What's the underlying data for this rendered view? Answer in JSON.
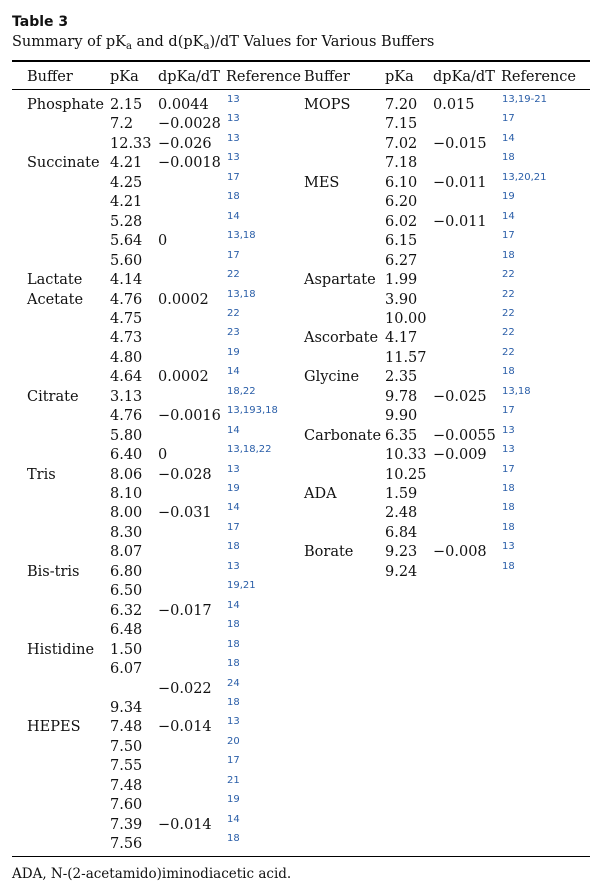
{
  "table_label": "Table 3",
  "caption": {
    "pre": "Summary of pK",
    "sub1": "a",
    "mid": " and d(pK",
    "sub2": "a",
    "post": ")/dT Values for Various Buffers"
  },
  "headers": {
    "buffer": "Buffer",
    "pka": "pKa",
    "dpka": "dpKa/dT",
    "reference": "Reference",
    "buffer2": "Buffer",
    "pka2": "pKa",
    "dpka2": "dpKa/dT",
    "reference2": "Reference"
  },
  "left_rows": [
    {
      "buffer": "Phosphate",
      "pka": "2.15",
      "dpka": "0.0044",
      "ref": "13"
    },
    {
      "buffer": "",
      "pka": "7.2",
      "dpka": "−0.0028",
      "ref": "13"
    },
    {
      "buffer": "",
      "pka": "12.33",
      "dpka": "−0.026",
      "ref": "13"
    },
    {
      "buffer": "Succinate",
      "pka": "4.21",
      "dpka": "−0.0018",
      "ref": "13"
    },
    {
      "buffer": "",
      "pka": "4.25",
      "dpka": "",
      "ref": "17"
    },
    {
      "buffer": "",
      "pka": "4.21",
      "dpka": "",
      "ref": "18"
    },
    {
      "buffer": "",
      "pka": "5.28",
      "dpka": "",
      "ref": "14"
    },
    {
      "buffer": "",
      "pka": "5.64",
      "dpka": "0",
      "ref": "13,18"
    },
    {
      "buffer": "",
      "pka": "5.60",
      "dpka": "",
      "ref": "17"
    },
    {
      "buffer": "Lactate",
      "pka": "4.14",
      "dpka": "",
      "ref": "22"
    },
    {
      "buffer": "Acetate",
      "pka": "4.76",
      "dpka": "0.0002",
      "ref": "13,18"
    },
    {
      "buffer": "",
      "pka": "4.75",
      "dpka": "",
      "ref": "22"
    },
    {
      "buffer": "",
      "pka": "4.73",
      "dpka": "",
      "ref": "23"
    },
    {
      "buffer": "",
      "pka": "4.80",
      "dpka": "",
      "ref": "19"
    },
    {
      "buffer": "",
      "pka": "4.64",
      "dpka": "0.0002",
      "ref": "14"
    },
    {
      "buffer": "Citrate",
      "pka": "3.13",
      "dpka": "",
      "ref": "18,22"
    },
    {
      "buffer": "",
      "pka": "4.76",
      "dpka": "−0.0016",
      "ref": "13,193,18"
    },
    {
      "buffer": "",
      "pka": "5.80",
      "dpka": "",
      "ref": "14"
    },
    {
      "buffer": "",
      "pka": "6.40",
      "dpka": "0",
      "ref": "13,18,22"
    },
    {
      "buffer": "Tris",
      "pka": "8.06",
      "dpka": "−0.028",
      "ref": "13"
    },
    {
      "buffer": "",
      "pka": "8.10",
      "dpka": "",
      "ref": "19"
    },
    {
      "buffer": "",
      "pka": "8.00",
      "dpka": "−0.031",
      "ref": "14"
    },
    {
      "buffer": "",
      "pka": "8.30",
      "dpka": "",
      "ref": "17"
    },
    {
      "buffer": "",
      "pka": "8.07",
      "dpka": "",
      "ref": "18"
    },
    {
      "buffer": "Bis-tris",
      "pka": "6.80",
      "dpka": "",
      "ref": "13"
    },
    {
      "buffer": "",
      "pka": "6.50",
      "dpka": "",
      "ref": "19,21"
    },
    {
      "buffer": "",
      "pka": "6.32",
      "dpka": "−0.017",
      "ref": "14"
    },
    {
      "buffer": "",
      "pka": "6.48",
      "dpka": "",
      "ref": "18"
    },
    {
      "buffer": "Histidine",
      "pka": "1.50",
      "dpka": "",
      "ref": "18"
    },
    {
      "buffer": "",
      "pka": "6.07",
      "dpka": "",
      "ref": "18"
    },
    {
      "buffer": "",
      "pka": "",
      "dpka": "−0.022",
      "ref": "24"
    },
    {
      "buffer": "",
      "pka": "9.34",
      "dpka": "",
      "ref": "18"
    },
    {
      "buffer": "HEPES",
      "pka": "7.48",
      "dpka": "−0.014",
      "ref": "13"
    },
    {
      "buffer": "",
      "pka": "7.50",
      "dpka": "",
      "ref": "20"
    },
    {
      "buffer": "",
      "pka": "7.55",
      "dpka": "",
      "ref": "17"
    },
    {
      "buffer": "",
      "pka": "7.48",
      "dpka": "",
      "ref": "21"
    },
    {
      "buffer": "",
      "pka": "7.60",
      "dpka": "",
      "ref": "19"
    },
    {
      "buffer": "",
      "pka": "7.39",
      "dpka": "−0.014",
      "ref": "14"
    },
    {
      "buffer": "",
      "pka": "7.56",
      "dpka": "",
      "ref": "18"
    }
  ],
  "right_rows": [
    {
      "buffer": "MOPS",
      "pka": "7.20",
      "dpka": "0.015",
      "ref": "13,19-21"
    },
    {
      "buffer": "",
      "pka": "7.15",
      "dpka": "",
      "ref": "17"
    },
    {
      "buffer": "",
      "pka": "7.02",
      "dpka": "−0.015",
      "ref": "14"
    },
    {
      "buffer": "",
      "pka": "7.18",
      "dpka": "",
      "ref": "18"
    },
    {
      "buffer": "MES",
      "pka": "6.10",
      "dpka": "−0.011",
      "ref": "13,20,21"
    },
    {
      "buffer": "",
      "pka": "6.20",
      "dpka": "",
      "ref": "19"
    },
    {
      "buffer": "",
      "pka": "6.02",
      "dpka": "−0.011",
      "ref": "14"
    },
    {
      "buffer": "",
      "pka": "6.15",
      "dpka": "",
      "ref": "17"
    },
    {
      "buffer": "",
      "pka": "6.27",
      "dpka": "",
      "ref": "18"
    },
    {
      "buffer": "Aspartate",
      "pka": "1.99",
      "dpka": "",
      "ref": "22"
    },
    {
      "buffer": "",
      "pka": "3.90",
      "dpka": "",
      "ref": "22"
    },
    {
      "buffer": "",
      "pka": "10.00",
      "dpka": "",
      "ref": "22"
    },
    {
      "buffer": "Ascorbate",
      "pka": "4.17",
      "dpka": "",
      "ref": "22"
    },
    {
      "buffer": "",
      "pka": "11.57",
      "dpka": "",
      "ref": "22"
    },
    {
      "buffer": "Glycine",
      "pka": "2.35",
      "dpka": "",
      "ref": "18"
    },
    {
      "buffer": "",
      "pka": "9.78",
      "dpka": "−0.025",
      "ref": "13,18"
    },
    {
      "buffer": "",
      "pka": "9.90",
      "dpka": "",
      "ref": "17"
    },
    {
      "buffer": "Carbonate",
      "pka": "6.35",
      "dpka": "−0.0055",
      "ref": "13"
    },
    {
      "buffer": "",
      "pka": "10.33",
      "dpka": "−0.009",
      "ref": "13"
    },
    {
      "buffer": "",
      "pka": "10.25",
      "dpka": "",
      "ref": "17"
    },
    {
      "buffer": "ADA",
      "pka": "1.59",
      "dpka": "",
      "ref": "18"
    },
    {
      "buffer": "",
      "pka": "2.48",
      "dpka": "",
      "ref": "18"
    },
    {
      "buffer": "",
      "pka": "6.84",
      "dpka": "",
      "ref": "18"
    },
    {
      "buffer": "Borate",
      "pka": "9.23",
      "dpka": "−0.008",
      "ref": "13"
    },
    {
      "buffer": "",
      "pka": "9.24",
      "dpka": "",
      "ref": "18"
    }
  ],
  "footnote": "ADA, N-(2-acetamido)iminodiacetic acid.",
  "colors": {
    "reference_link": "#2a5ea8",
    "text": "#111111"
  }
}
